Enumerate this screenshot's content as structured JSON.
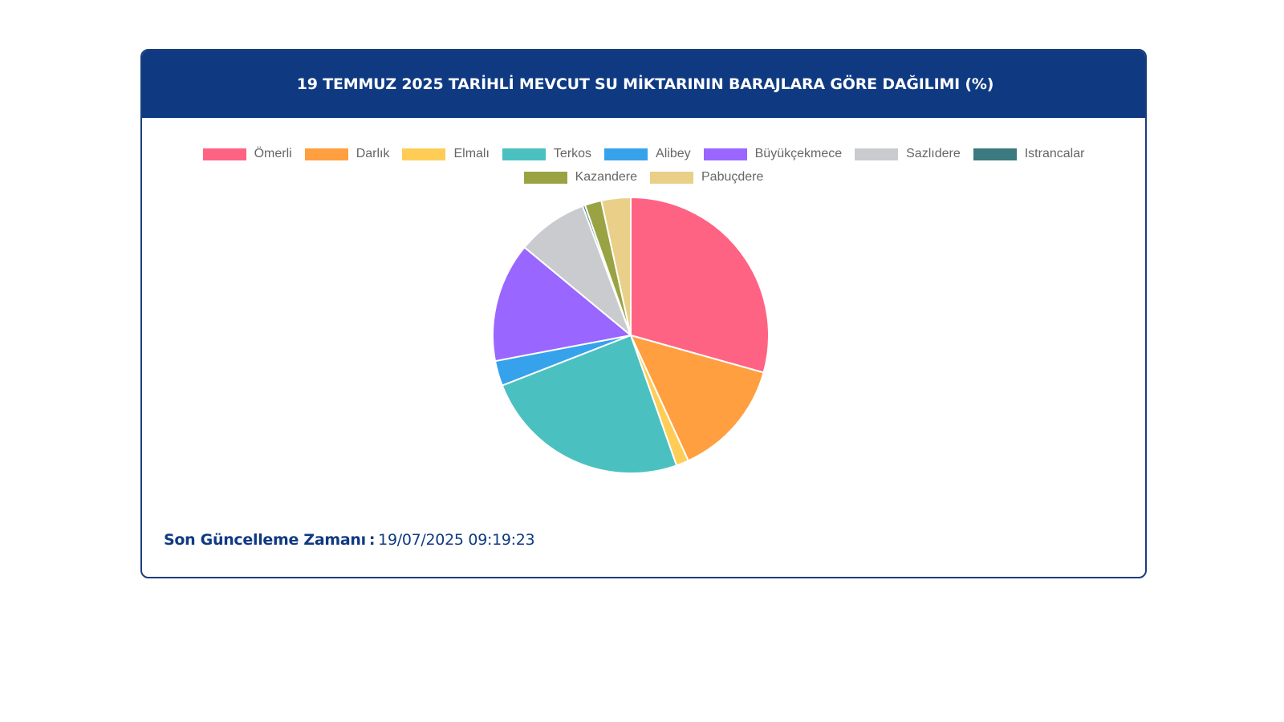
{
  "header": {
    "title": "19 TEMMUZ 2025 TARİHLİ MEVCUT SU MİKTARININ BARAJLARA GÖRE DAĞILIMI (%)"
  },
  "footer": {
    "label": "Son Güncelleme Zamanı",
    "separator": ":",
    "value": "19/07/2025 09:19:23"
  },
  "chart_data": {
    "type": "pie",
    "title": "19 TEMMUZ 2025 TARİHLİ MEVCUT SU MİKTARININ BARAJLARA GÖRE DAĞILIMI (%)",
    "legend_position": "top",
    "categories": [
      "Ömerli",
      "Darlık",
      "Elmalı",
      "Terkos",
      "Alibey",
      "Büyükçekmece",
      "Sazlıdere",
      "Istrancalar",
      "Kazandere",
      "Pabuçdere"
    ],
    "values": [
      30.0,
      14.1,
      1.5,
      25.0,
      3.0,
      14.3,
      8.5,
      0.3,
      2.0,
      3.5
    ],
    "colors": [
      "#ff6384",
      "#ff9f40",
      "#ffcd56",
      "#4bc0c0",
      "#36a2eb",
      "#9966ff",
      "#c9cbcf",
      "#3b7a7f",
      "#9aa343",
      "#e9cf88"
    ]
  }
}
